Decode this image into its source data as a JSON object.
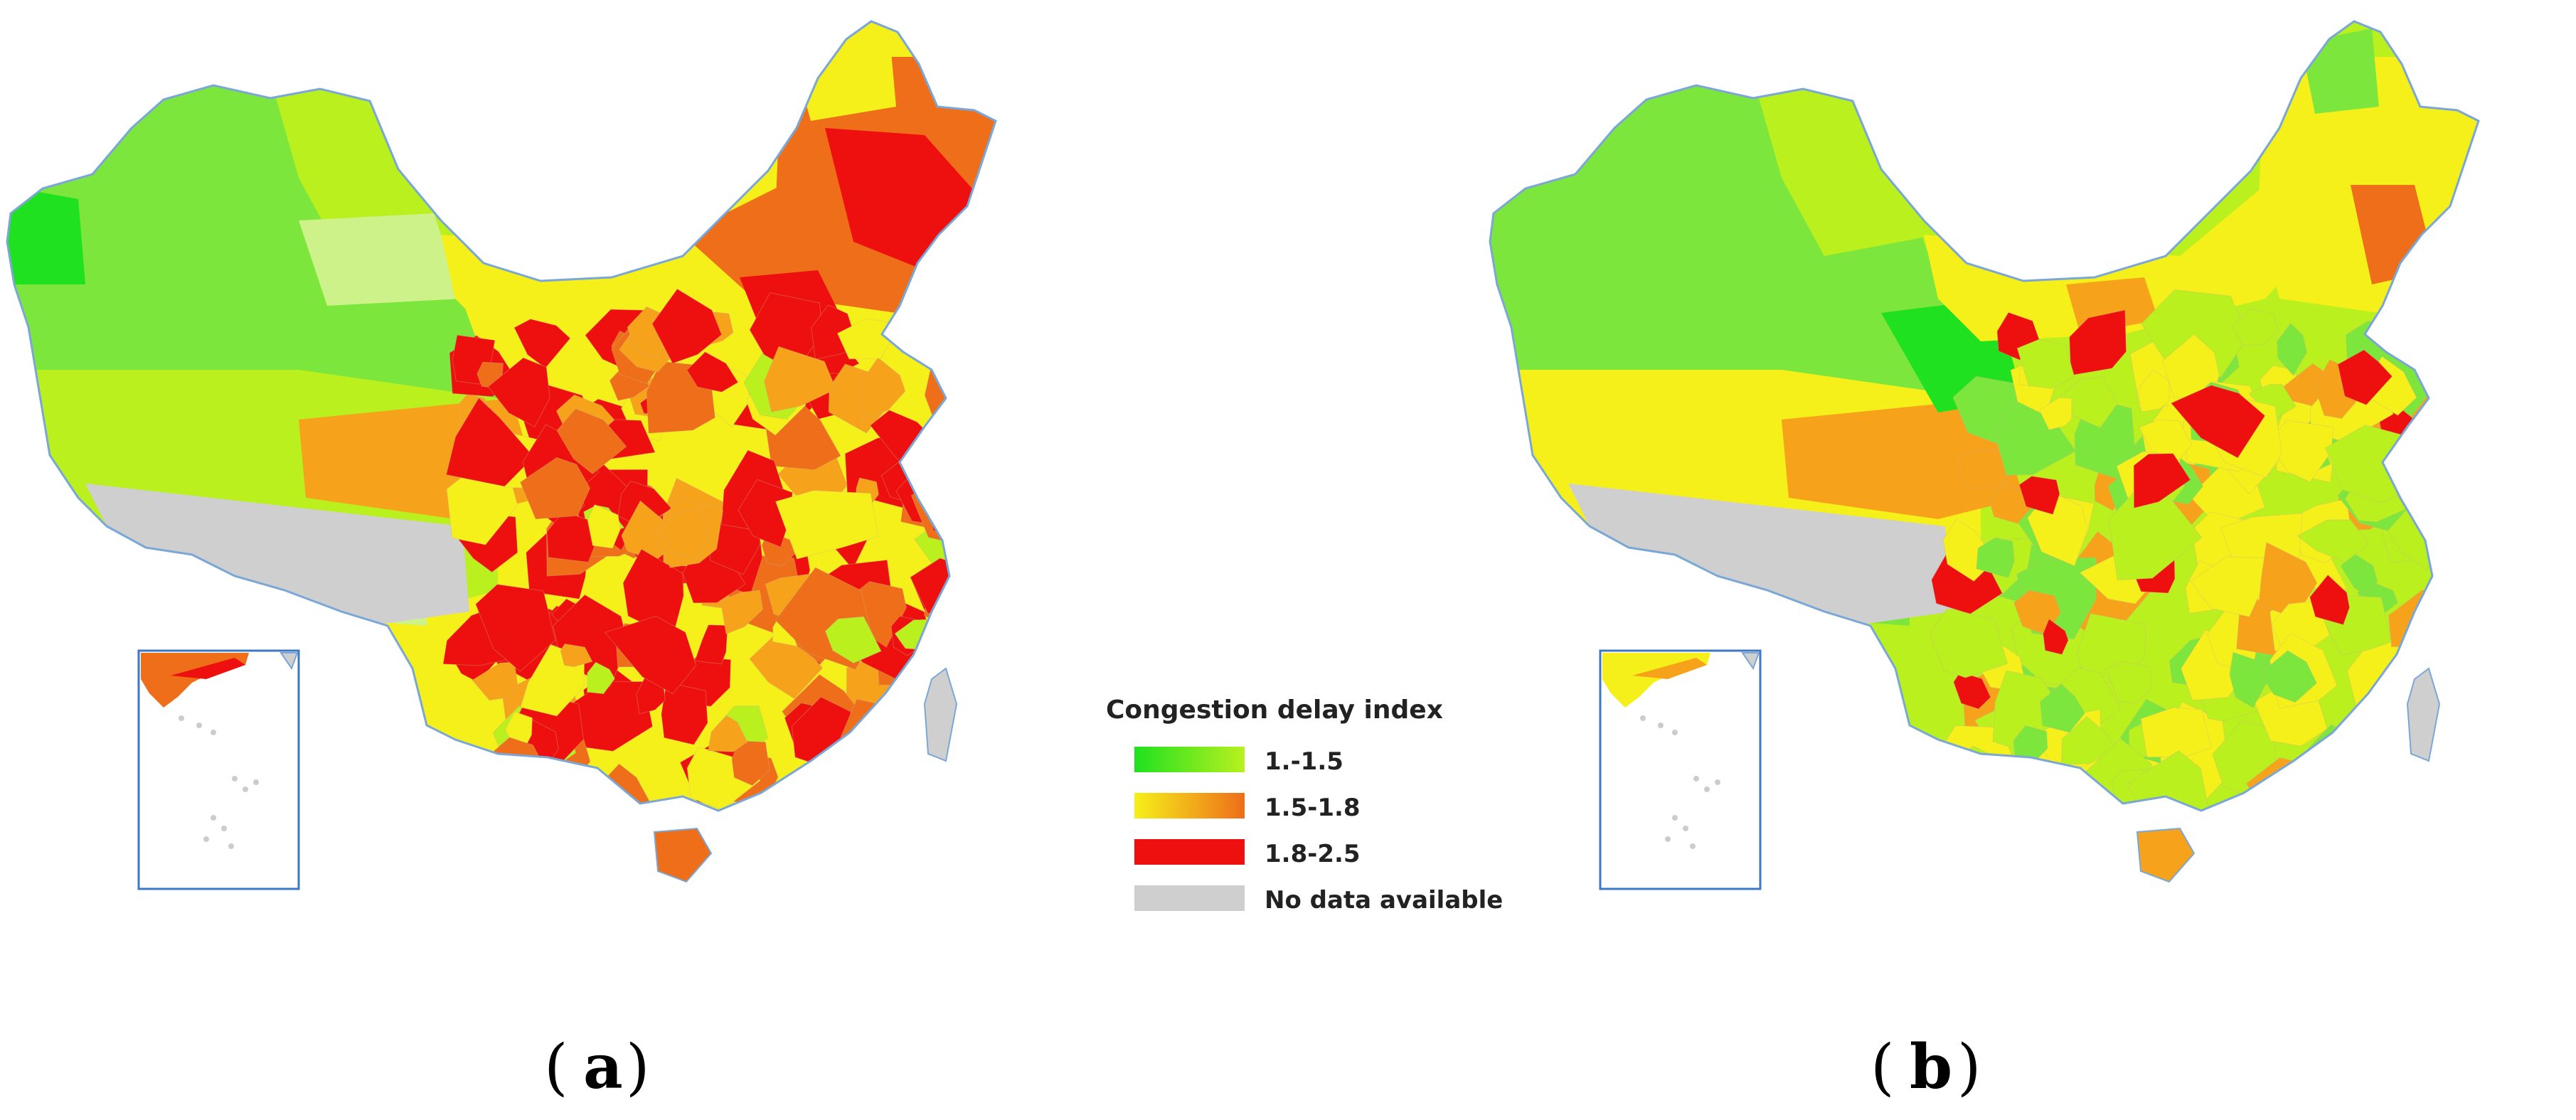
{
  "colors": {
    "green_bright": "#1fe11f",
    "green_mid": "#7de63c",
    "green_yellow": "#b9f01e",
    "light_green": "#cdf28a",
    "yellow": "#f6f01a",
    "orange": "#f7a21b",
    "dark_orange": "#ee6e19",
    "red": "#ee0f0f",
    "gray": "#cfcfcf",
    "border": "#7aa7d6"
  },
  "panels": [
    {
      "label_open": "(",
      "label_letter": "a",
      "label_close": ")",
      "palette": [
        "#ee0f0f",
        "#ee0f0f",
        "#ee6e19",
        "#f7a21b",
        "#ee0f0f",
        "#f6f01a",
        "#ee0f0f",
        "#b9f01e",
        "#ee6e19",
        "#ee0f0f",
        "#f7a21b",
        "#ee0f0f"
      ]
    },
    {
      "label_open": "(",
      "label_letter": "b",
      "label_close": ")",
      "palette": [
        "#b9f01e",
        "#f6f01a",
        "#7de63c",
        "#b9f01e",
        "#f7a21b",
        "#b9f01e",
        "#f6f01a",
        "#7de63c",
        "#ee0f0f",
        "#b9f01e",
        "#f6f01a",
        "#7de63c"
      ]
    }
  ],
  "legend": {
    "title": "Congestion delay index",
    "items": [
      {
        "label": "1.-1.5",
        "gradient": [
          "#1fe11f",
          "#b9f01e"
        ]
      },
      {
        "label": "1.5-1.8",
        "gradient": [
          "#f6f01a",
          "#ee6e19"
        ]
      },
      {
        "label": "1.8-2.5",
        "gradient": [
          "#ee0f0f",
          "#ee0f0f"
        ]
      },
      {
        "label": "No data available",
        "gradient": [
          "#cfcfcf",
          "#cfcfcf"
        ]
      }
    ]
  }
}
